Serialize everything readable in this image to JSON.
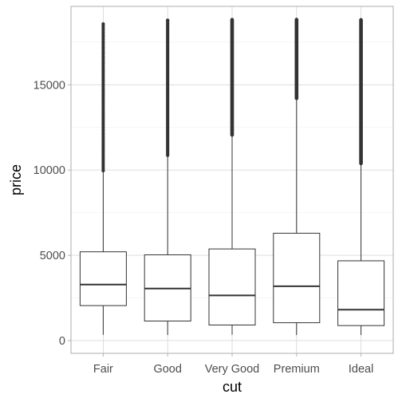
{
  "chart_data": {
    "type": "boxplot",
    "xlabel": "cut",
    "ylabel": "price",
    "categories": [
      "Fair",
      "Good",
      "Very Good",
      "Premium",
      "Ideal"
    ],
    "y_ticks": [
      0,
      5000,
      10000,
      15000
    ],
    "y_tick_labels": [
      "0",
      "5000",
      "10000",
      "15000"
    ],
    "ylim": [
      -750,
      19600
    ],
    "grid": true,
    "theme": "light",
    "boxes": [
      {
        "category": "Fair",
        "whisker_low": 337,
        "q1": 2050,
        "median": 3282,
        "q3": 5206,
        "whisker_high": 9940,
        "outliers_from": 9960,
        "outliers_to": 18574,
        "outlier_style": "sparse"
      },
      {
        "category": "Good",
        "whisker_low": 327,
        "q1": 1145,
        "median": 3050,
        "q3": 5028,
        "whisker_high": 10850,
        "outliers_from": 10860,
        "outliers_to": 18788,
        "outlier_style": "medium"
      },
      {
        "category": "Very Good",
        "whisker_low": 336,
        "q1": 912,
        "median": 2648,
        "q3": 5373,
        "whisker_high": 12050,
        "outliers_from": 12060,
        "outliers_to": 18818,
        "outlier_style": "dense"
      },
      {
        "category": "Premium",
        "whisker_low": 326,
        "q1": 1046,
        "median": 3185,
        "q3": 6296,
        "whisker_high": 14200,
        "outliers_from": 14210,
        "outliers_to": 18823,
        "outlier_style": "dense"
      },
      {
        "category": "Ideal",
        "whisker_low": 326,
        "q1": 878,
        "median": 1810,
        "q3": 4678,
        "whisker_high": 10380,
        "outliers_from": 10390,
        "outliers_to": 18806,
        "outlier_style": "dense"
      }
    ],
    "colors": {
      "grid_major": "#d9d9d9",
      "grid_minor": "#ececec",
      "panel_border": "#b3b3b3",
      "box_line": "#333333",
      "outlier": "#333333",
      "tick_text": "#4d4d4d",
      "axis_title": "#000000"
    }
  }
}
